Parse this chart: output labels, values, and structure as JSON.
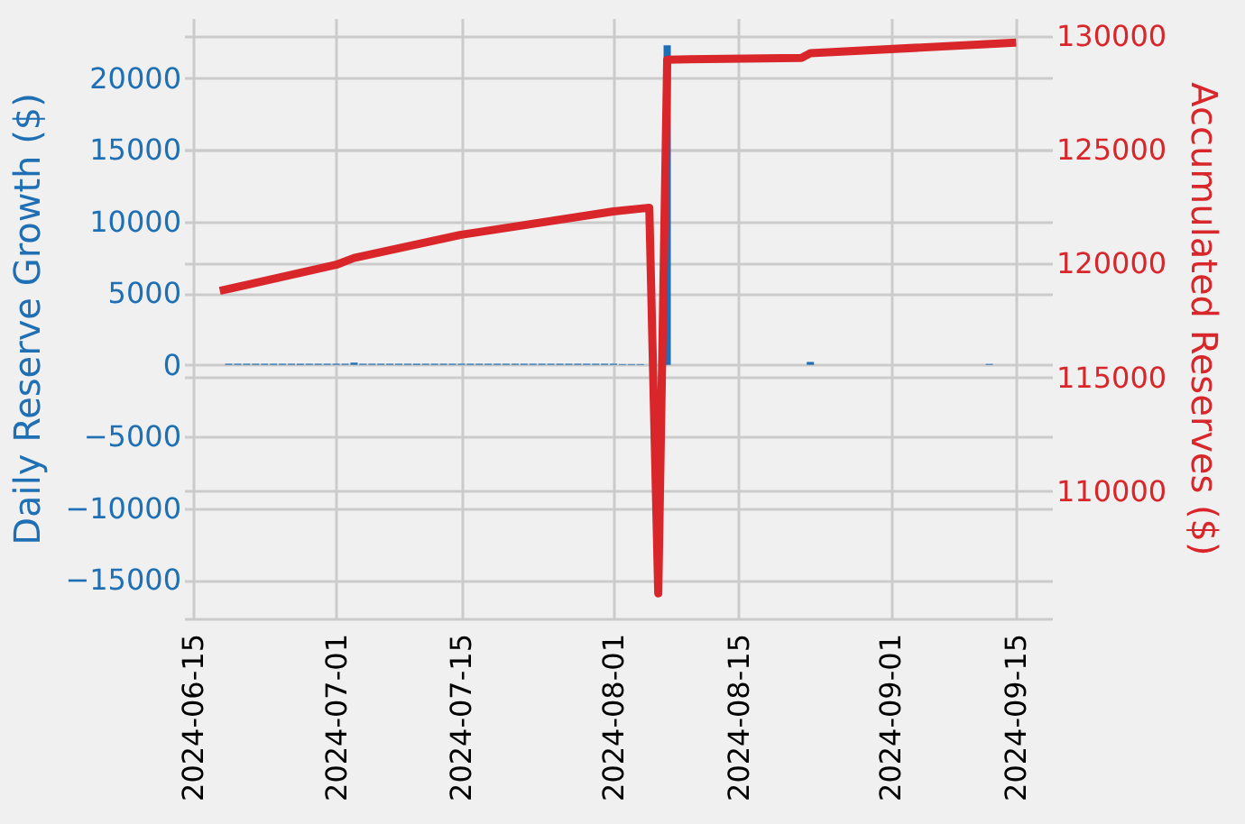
{
  "chart_data": {
    "type": "bar",
    "ylabel": "Daily Reserve Growth ($)",
    "y2label": "Accumulated Reserves ($)",
    "xlim": [
      "2024-06-14",
      "2024-09-19"
    ],
    "xticks": [
      "2024-06-15",
      "2024-07-01",
      "2024-07-15",
      "2024-08-01",
      "2024-08-15",
      "2024-09-01",
      "2024-09-15"
    ],
    "ylim": [
      -17700,
      24200
    ],
    "yticks": [
      -15000,
      -10000,
      -5000,
      0,
      5000,
      10000,
      15000,
      20000
    ],
    "y2lim": [
      104400,
      130800
    ],
    "y2ticks": [
      110000,
      115000,
      120000,
      125000,
      130000
    ],
    "grid": true,
    "series": [
      {
        "color": "#1f6fb4",
        "x": [
          "2024-06-19",
          "2024-06-20",
          "2024-06-21",
          "2024-06-22",
          "2024-06-23",
          "2024-06-24",
          "2024-06-25",
          "2024-06-26",
          "2024-06-27",
          "2024-06-28",
          "2024-06-29",
          "2024-06-30",
          "2024-07-01",
          "2024-07-02",
          "2024-07-03",
          "2024-07-04",
          "2024-07-05",
          "2024-07-06",
          "2024-07-07",
          "2024-07-08",
          "2024-07-09",
          "2024-07-10",
          "2024-07-11",
          "2024-07-12",
          "2024-07-13",
          "2024-07-14",
          "2024-07-15",
          "2024-07-16",
          "2024-07-17",
          "2024-07-18",
          "2024-07-19",
          "2024-07-20",
          "2024-07-21",
          "2024-07-22",
          "2024-07-23",
          "2024-07-24",
          "2024-07-25",
          "2024-07-26",
          "2024-07-27",
          "2024-07-28",
          "2024-07-29",
          "2024-07-30",
          "2024-07-31",
          "2024-08-01",
          "2024-08-02",
          "2024-08-03",
          "2024-08-04",
          "2024-08-05",
          "2024-08-06",
          "2024-08-07",
          "2024-08-23",
          "2024-09-12"
        ],
        "values": [
          75,
          75,
          75,
          75,
          75,
          75,
          75,
          75,
          75,
          75,
          75,
          75,
          75,
          75,
          150,
          75,
          75,
          75,
          75,
          75,
          75,
          75,
          75,
          75,
          75,
          75,
          75,
          75,
          75,
          75,
          75,
          75,
          75,
          75,
          75,
          75,
          75,
          75,
          75,
          75,
          75,
          75,
          75,
          75,
          50,
          50,
          50,
          null,
          null,
          22300,
          200,
          60
        ]
      },
      {
        "type": "line",
        "axis": "y2",
        "color": "#d9262a",
        "x": [
          "2024-06-18",
          "2024-07-01",
          "2024-07-03",
          "2024-07-15",
          "2024-08-01",
          "2024-08-05",
          "2024-08-06",
          "2024-08-07",
          "2024-08-22",
          "2024-08-23",
          "2024-09-15"
        ],
        "values": [
          118800,
          119950,
          120250,
          121270,
          122300,
          122460,
          105500,
          128970,
          129050,
          129250,
          129720
        ]
      }
    ]
  }
}
